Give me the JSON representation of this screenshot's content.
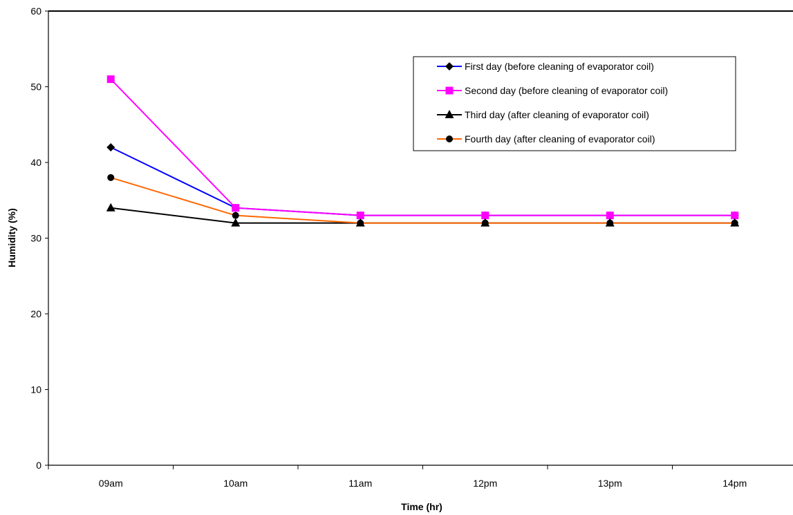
{
  "chart_data": {
    "type": "line",
    "title": "",
    "xlabel": "Time (hr)",
    "ylabel": "Humidity (%)",
    "ylim": [
      0,
      60
    ],
    "yticks": [
      0,
      10,
      20,
      30,
      40,
      50,
      60
    ],
    "categories": [
      "09am",
      "10am",
      "11am",
      "12pm",
      "13pm",
      "14pm"
    ],
    "grid": false,
    "legend_position": "top-right",
    "series": [
      {
        "name": "First day (before cleaning of evaporator coil)",
        "values": [
          42,
          34,
          33,
          33,
          33,
          33
        ],
        "color": "#0000ff",
        "marker": "diamond"
      },
      {
        "name": "Second day (before cleaning of evaporator coil)",
        "values": [
          51,
          34,
          33,
          33,
          33,
          33
        ],
        "color": "#ff00ff",
        "marker": "square"
      },
      {
        "name": "Third day (after cleaning of evaporator coil)",
        "values": [
          34,
          32,
          32,
          32,
          32,
          32
        ],
        "color": "#000000",
        "marker": "triangle"
      },
      {
        "name": "Fourth day (after cleaning of evaporator coil)",
        "values": [
          38,
          33,
          32,
          32,
          32,
          32
        ],
        "color": "#ff6600",
        "marker": "circle"
      }
    ]
  }
}
